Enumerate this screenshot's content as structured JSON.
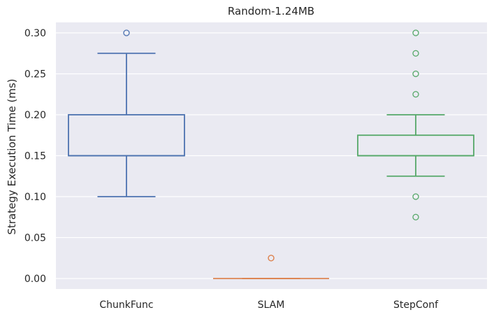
{
  "chart_data": {
    "type": "box",
    "title": "Random-1.24MB",
    "xlabel": "",
    "ylabel": "Strategy Execution Time (ms)",
    "ylim": [
      -0.013,
      0.315
    ],
    "yticks": [
      0.0,
      0.05,
      0.1,
      0.15,
      0.2,
      0.25,
      0.3
    ],
    "ytick_labels": [
      "0.00",
      "0.05",
      "0.10",
      "0.15",
      "0.20",
      "0.25",
      "0.30"
    ],
    "grid": true,
    "categories": [
      "ChunkFunc",
      "SLAM",
      "StepConf"
    ],
    "boxes": [
      {
        "category": "ChunkFunc",
        "color": "#4c72b0",
        "whisker_low": 0.1,
        "q1": 0.15,
        "median": 0.15,
        "q3": 0.2,
        "whisker_high": 0.275,
        "outliers": [
          0.3
        ]
      },
      {
        "category": "SLAM",
        "color": "#dd8452",
        "whisker_low": 0.0,
        "q1": 0.0,
        "median": 0.0,
        "q3": 0.0,
        "whisker_high": 0.0,
        "outliers": [
          0.025,
          0.025
        ]
      },
      {
        "category": "StepConf",
        "color": "#55a868",
        "whisker_low": 0.125,
        "q1": 0.15,
        "median": 0.15,
        "q3": 0.175,
        "whisker_high": 0.2,
        "outliers": [
          0.3,
          0.275,
          0.25,
          0.225,
          0.1,
          0.075
        ]
      }
    ],
    "colors": {
      "background": "#eaeaf2",
      "grid": "#ffffff",
      "text": "#262626"
    }
  }
}
